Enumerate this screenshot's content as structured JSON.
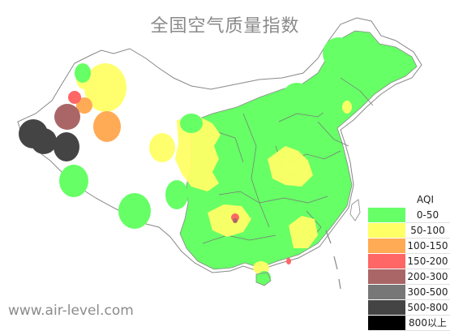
{
  "title": "全国空气质量指数",
  "watermark": "www.air-level.com",
  "legend": {
    "title": "AQI",
    "items": [
      {
        "label": "0-50",
        "color": "#66ff66"
      },
      {
        "label": "50-100",
        "color": "#ffff66"
      },
      {
        "label": "100-150",
        "color": "#ffaa55"
      },
      {
        "label": "150-200",
        "color": "#ff6666"
      },
      {
        "label": "200-300",
        "color": "#aa6666"
      },
      {
        "label": "300-500",
        "color": "#777777"
      },
      {
        "label": "500-800",
        "color": "#444444"
      },
      {
        "label": "800以上",
        "color": "#000000"
      }
    ]
  },
  "colors": {
    "good": "#66ff66",
    "moderate": "#ffff66",
    "sensitive": "#ffaa55",
    "unhealthy": "#ff6666",
    "very_unhealthy": "#aa6666",
    "hazardous": "#777777",
    "severe": "#444444",
    "extreme": "#000000",
    "border": "#888888"
  }
}
